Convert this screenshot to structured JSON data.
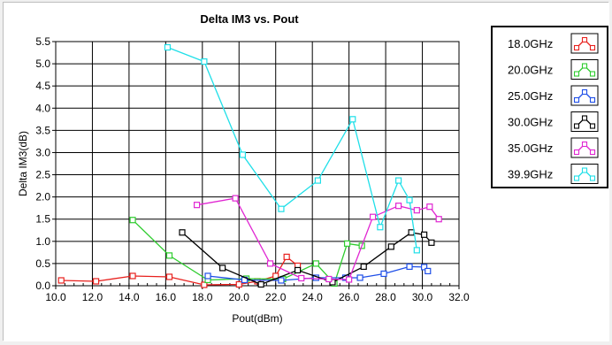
{
  "chart_data": {
    "type": "line",
    "title": "Delta IM3 vs. Pout",
    "xlabel": "Pout(dBm)",
    "ylabel": "Delta IM3(dB)",
    "xlim": [
      10.0,
      32.0
    ],
    "ylim": [
      0.0,
      5.5
    ],
    "x_ticks": [
      "10.0",
      "12.0",
      "14.0",
      "16.0",
      "18.0",
      "20.0",
      "22.0",
      "24.0",
      "26.0",
      "28.0",
      "30.0",
      "32.0"
    ],
    "y_ticks": [
      "0.0",
      "0.5",
      "1.0",
      "1.5",
      "2.0",
      "2.5",
      "3.0",
      "3.5",
      "4.0",
      "4.5",
      "5.0",
      "5.5"
    ],
    "grid": true,
    "legend_position": "right",
    "series": [
      {
        "name": "18.0GHz",
        "color": "#e8211e",
        "x": [
          10.3,
          12.2,
          14.2,
          16.2,
          18.1,
          20.0,
          21.0,
          22.0,
          22.6,
          23.2
        ],
        "y": [
          0.12,
          0.1,
          0.22,
          0.2,
          0.02,
          0.03,
          0.1,
          0.22,
          0.65,
          0.45
        ]
      },
      {
        "name": "20.0GHz",
        "color": "#2ecc2e",
        "x": [
          14.2,
          16.2,
          18.3,
          20.4,
          22.4,
          24.2,
          25.2,
          25.9,
          26.7
        ],
        "y": [
          1.48,
          0.68,
          0.13,
          0.16,
          0.15,
          0.5,
          0.05,
          0.95,
          0.9
        ]
      },
      {
        "name": "25.0GHz",
        "color": "#1f4fe8",
        "x": [
          18.3,
          20.3,
          22.3,
          24.2,
          25.8,
          26.6,
          27.9,
          29.3,
          30.1,
          30.3
        ],
        "y": [
          0.22,
          0.13,
          0.12,
          0.18,
          0.18,
          0.18,
          0.27,
          0.43,
          0.42,
          0.33
        ]
      },
      {
        "name": "30.0GHz",
        "color": "#000000",
        "x": [
          16.9,
          19.1,
          21.2,
          23.2,
          25.1,
          26.8,
          28.3,
          29.4,
          30.1,
          30.5
        ],
        "y": [
          1.2,
          0.4,
          0.03,
          0.35,
          0.08,
          0.43,
          0.88,
          1.2,
          1.15,
          0.97
        ]
      },
      {
        "name": "35.0GHz",
        "color": "#e026d2",
        "x": [
          17.7,
          19.8,
          21.7,
          23.4,
          24.9,
          26.0,
          27.3,
          28.7,
          29.7,
          30.4,
          30.9
        ],
        "y": [
          1.82,
          1.97,
          0.5,
          0.17,
          0.15,
          0.14,
          1.55,
          1.8,
          1.7,
          1.78,
          1.5
        ]
      },
      {
        "name": "39.9GHz",
        "color": "#1fdfe8",
        "x": [
          16.1,
          18.1,
          20.2,
          22.3,
          24.3,
          26.2,
          27.7,
          28.7,
          29.3,
          29.7
        ],
        "y": [
          5.37,
          5.05,
          2.95,
          1.73,
          2.37,
          3.75,
          1.32,
          2.37,
          1.93,
          0.8
        ]
      }
    ]
  }
}
